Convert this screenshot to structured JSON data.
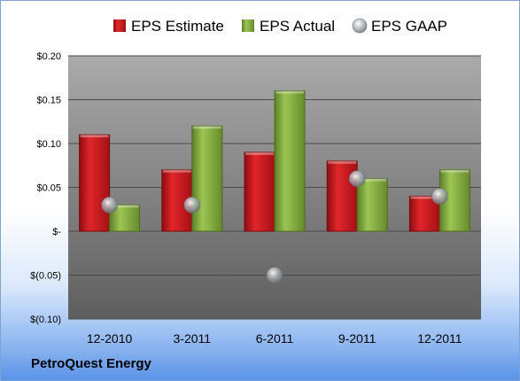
{
  "company": "PetroQuest Energy",
  "colors": {
    "estimate": "#c0171c",
    "actual": "#7aa23a",
    "gaap": "#9aa0a6",
    "plot_bg_top": "#a8a8a8",
    "plot_bg_bottom": "#5f5f5f"
  },
  "chart_data": {
    "type": "bar",
    "categories": [
      "12-2010",
      "3-2011",
      "6-2011",
      "9-2011",
      "12-2011"
    ],
    "series": [
      {
        "name": "EPS Estimate",
        "type": "bar",
        "values": [
          0.11,
          0.07,
          0.09,
          0.08,
          0.04
        ]
      },
      {
        "name": "EPS Actual",
        "type": "bar",
        "values": [
          0.03,
          0.12,
          0.16,
          0.06,
          0.07
        ]
      },
      {
        "name": "EPS GAAP",
        "type": "scatter",
        "values": [
          0.03,
          0.03,
          -0.05,
          0.06,
          0.04
        ]
      }
    ],
    "ylim": [
      -0.1,
      0.2
    ],
    "yticks": [
      0.2,
      0.15,
      0.1,
      0.05,
      0,
      -0.05,
      -0.1
    ],
    "ytick_labels": [
      "$0.20",
      "$0.15",
      "$0.10",
      "$0.05",
      "$-",
      "$(0.05)",
      "$(0.10)"
    ],
    "grid": true,
    "legend_position": "top"
  }
}
